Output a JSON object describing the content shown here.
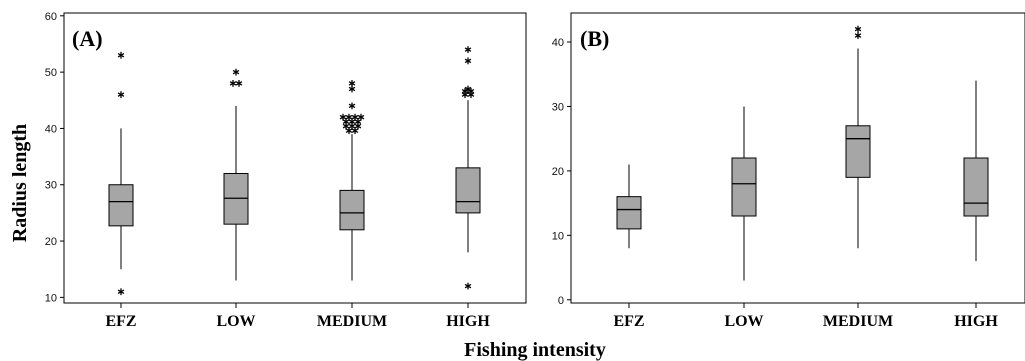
{
  "figure": {
    "xlabel": "Fishing intensity",
    "ylabel": "Radius length"
  },
  "style": {
    "box_fill": "#a6a6a6",
    "line_color": "#000000"
  },
  "chart_data": [
    {
      "type": "box",
      "panel_label": "(A)",
      "categories": [
        "EFZ",
        "LOW",
        "MEDIUM",
        "HIGH"
      ],
      "yticks": [
        10,
        20,
        30,
        40,
        50,
        60
      ],
      "ylim": [
        9,
        60.5
      ],
      "boxes": [
        {
          "category": "EFZ",
          "whisker_low": 15,
          "q1": 22.7,
          "median": 27,
          "q3": 30,
          "whisker_high": 40,
          "outliers": [
            11,
            46,
            53
          ]
        },
        {
          "category": "LOW",
          "whisker_low": 13,
          "q1": 23,
          "median": 27.6,
          "q3": 32,
          "whisker_high": 44,
          "outliers": [
            48,
            48,
            50
          ]
        },
        {
          "category": "MEDIUM",
          "whisker_low": 13,
          "q1": 22,
          "median": 25,
          "q3": 29,
          "whisker_high": 39,
          "outliers": [
            39.6,
            39.6,
            40.4,
            40.4,
            40.4,
            41.2,
            41.2,
            41.2,
            42,
            42,
            42,
            42,
            44,
            47,
            48
          ]
        },
        {
          "category": "HIGH",
          "whisker_low": 18,
          "q1": 25,
          "median": 27,
          "q3": 33,
          "whisker_high": 45,
          "outliers": [
            12,
            46,
            46,
            46.6,
            46.6,
            47,
            52,
            54
          ]
        }
      ]
    },
    {
      "type": "box",
      "panel_label": "(B)",
      "categories": [
        "EFZ",
        "LOW",
        "MEDIUM",
        "HIGH"
      ],
      "yticks": [
        0,
        10,
        20,
        30,
        40
      ],
      "ylim": [
        -0.5,
        44.5
      ],
      "boxes": [
        {
          "category": "EFZ",
          "whisker_low": 8,
          "q1": 11,
          "median": 14,
          "q3": 16,
          "whisker_high": 21,
          "outliers": []
        },
        {
          "category": "LOW",
          "whisker_low": 3,
          "q1": 13,
          "median": 18,
          "q3": 22,
          "whisker_high": 30,
          "outliers": []
        },
        {
          "category": "MEDIUM",
          "whisker_low": 8,
          "q1": 19,
          "median": 25,
          "q3": 27,
          "whisker_high": 39,
          "outliers": [
            41,
            42
          ]
        },
        {
          "category": "HIGH",
          "whisker_low": 6,
          "q1": 13,
          "median": 15,
          "q3": 22,
          "whisker_high": 34,
          "outliers": []
        }
      ]
    }
  ]
}
